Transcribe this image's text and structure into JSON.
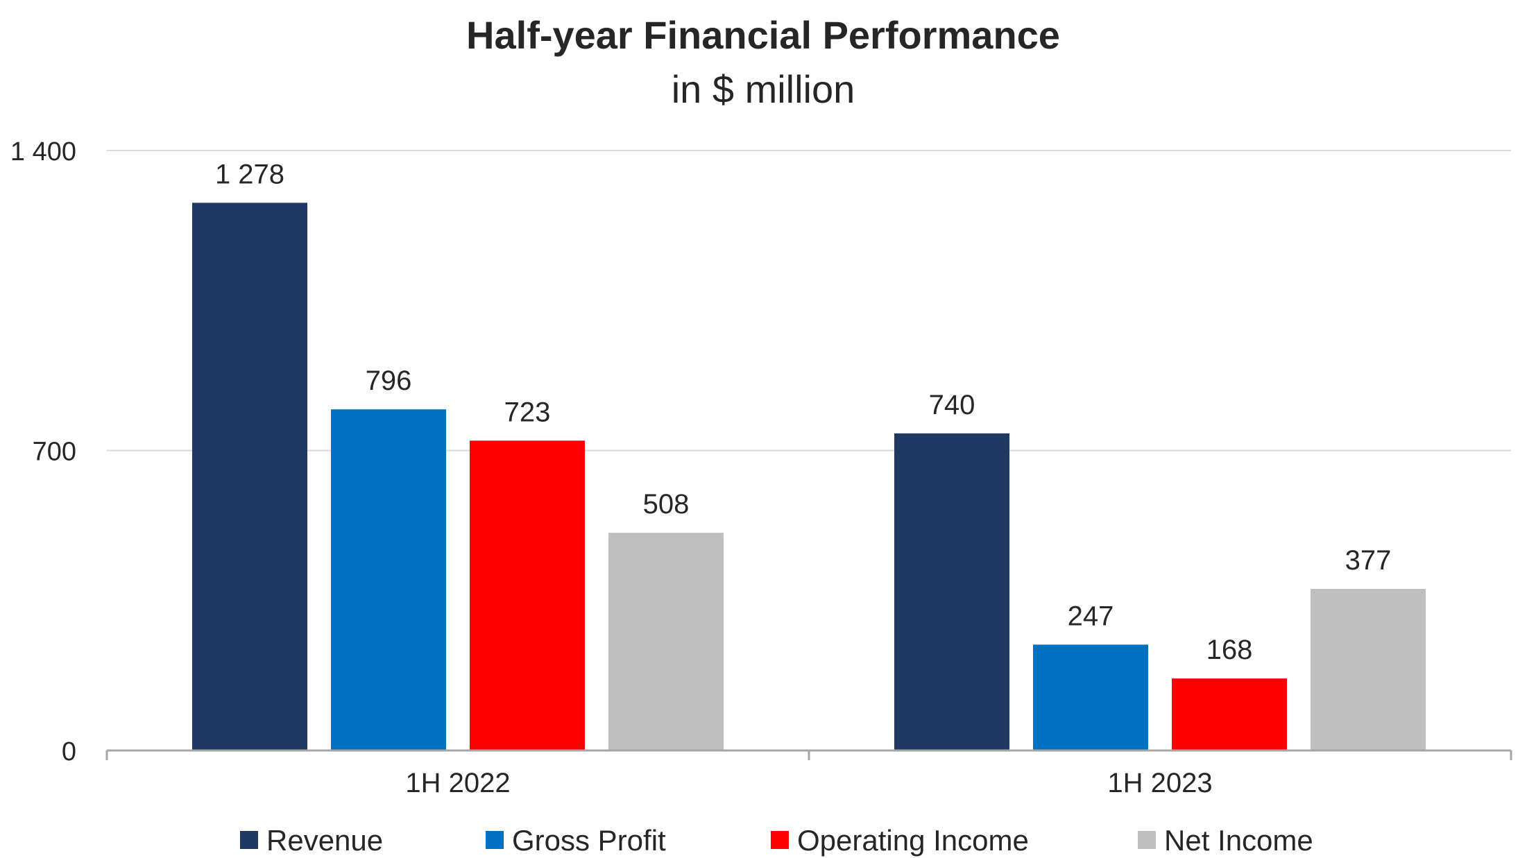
{
  "chart_data": {
    "type": "bar",
    "title": "Half-year Financial Performance",
    "subtitle": "in $ million",
    "categories": [
      "1H 2022",
      "1H 2023"
    ],
    "series": [
      {
        "name": "Revenue",
        "color": "#203864",
        "values": [
          1278,
          740
        ],
        "labels": [
          "1 278",
          "740"
        ]
      },
      {
        "name": "Gross Profit",
        "color": "#0070C0",
        "values": [
          796,
          247
        ],
        "labels": [
          "796",
          "247"
        ]
      },
      {
        "name": "Operating Income",
        "color": "#FF0000",
        "values": [
          723,
          168
        ],
        "labels": [
          "723",
          "168"
        ]
      },
      {
        "name": "Net Income",
        "color": "#BFBFBF",
        "values": [
          508,
          377
        ],
        "labels": [
          "508",
          "377"
        ]
      }
    ],
    "yticks": [
      0,
      700,
      1400
    ],
    "ytick_labels": [
      "0",
      "700",
      "1 400"
    ],
    "ylim": [
      0,
      1400
    ],
    "grid": true,
    "legend_position": "bottom"
  }
}
